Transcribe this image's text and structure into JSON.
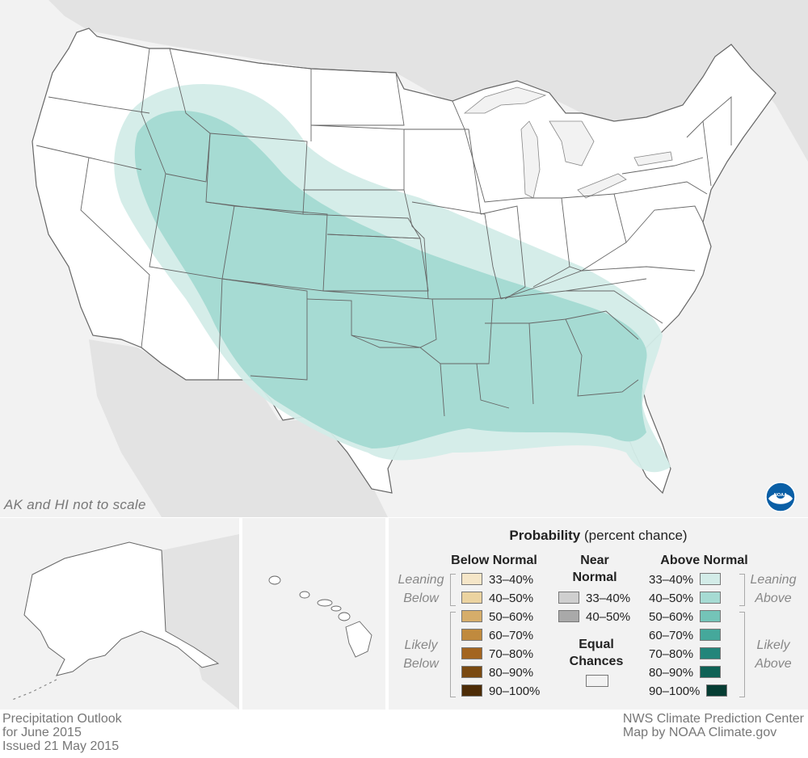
{
  "map": {
    "inset_note": "AK and HI not to scale",
    "colors": {
      "background": "#f2f2f2",
      "land": "#ffffff",
      "neighbor_land": "#e3e3e3",
      "leaning_above": "#d3ece8",
      "above_40_50": "#a6dbd3",
      "border": "#666666"
    },
    "logo": "noaa-logo",
    "outlook_regions": [
      {
        "category": "Above Normal",
        "probability": "33–40%",
        "area": "Leaning Above band from northern Rockies across central Plains and Mississippi Valley to the Carolinas and Florida"
      },
      {
        "category": "Above Normal",
        "probability": "40–50%",
        "area": "Core from Idaho, Wyoming, Colorado and Utah through Kansas, Oklahoma, Texas and the Gulf Coast states"
      }
    ]
  },
  "legend": {
    "title": "Probability",
    "title_suffix": "(percent chance)",
    "below": {
      "header": "Below Normal",
      "leaning_label": [
        "Leaning",
        "Below"
      ],
      "likely_label": [
        "Likely",
        "Below"
      ],
      "items": [
        {
          "label": "33–40%",
          "color": "#f5e6c8"
        },
        {
          "label": "40–50%",
          "color": "#ebd3a0"
        },
        {
          "label": "50–60%",
          "color": "#d6ad6a"
        },
        {
          "label": "60–70%",
          "color": "#c08a3e"
        },
        {
          "label": "70–80%",
          "color": "#a36520"
        },
        {
          "label": "80–90%",
          "color": "#7a4a12"
        },
        {
          "label": "90–100%",
          "color": "#4d2c07"
        }
      ]
    },
    "near": {
      "header": [
        "Near",
        "Normal"
      ],
      "items": [
        {
          "label": "33–40%",
          "color": "#cfcfcf"
        },
        {
          "label": "40–50%",
          "color": "#a9a9a9"
        }
      ]
    },
    "equal": {
      "header": [
        "Equal",
        "Chances"
      ],
      "color": "#ffffff"
    },
    "above": {
      "header": "Above Normal",
      "leaning_label": [
        "Leaning",
        "Above"
      ],
      "likely_label": [
        "Likely",
        "Above"
      ],
      "items": [
        {
          "label": "33–40%",
          "color": "#d3ece8"
        },
        {
          "label": "40–50%",
          "color": "#a6dbd3"
        },
        {
          "label": "50–60%",
          "color": "#74c4b8"
        },
        {
          "label": "60–70%",
          "color": "#45a89b"
        },
        {
          "label": "70–80%",
          "color": "#23857a"
        },
        {
          "label": "80–90%",
          "color": "#0f6255"
        },
        {
          "label": "90–100%",
          "color": "#063d33"
        }
      ]
    }
  },
  "footer": {
    "left": [
      "Precipitation Outlook",
      "for June 2015",
      "Issued 21 May 2015"
    ],
    "right": [
      "NWS Climate Prediction Center",
      "Map by NOAA Climate.gov"
    ]
  }
}
